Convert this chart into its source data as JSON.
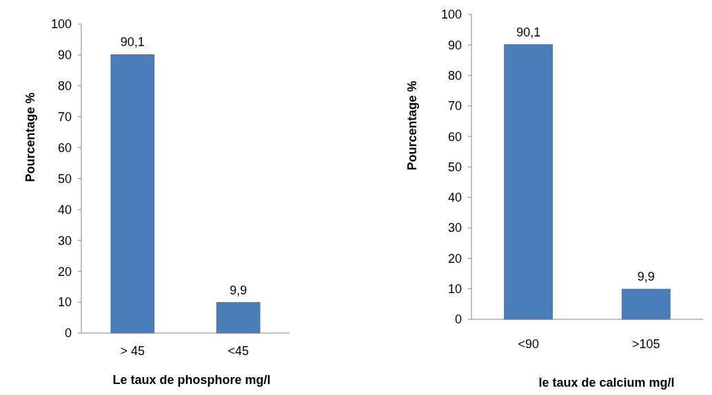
{
  "chart_data": [
    {
      "type": "bar",
      "xlabel": "Le taux de phosphore mg/l",
      "ylabel": "Pourcentage %",
      "categories": [
        "> 45",
        "<45"
      ],
      "values": [
        90.1,
        9.9
      ],
      "value_labels": [
        "90,1",
        "9,9"
      ],
      "color": "#4a7ebb",
      "ylim": [
        0,
        100
      ],
      "yticks": [
        0,
        10,
        20,
        30,
        40,
        50,
        60,
        70,
        80,
        90,
        100
      ],
      "grid": false
    },
    {
      "type": "bar",
      "xlabel": "le taux de calcium mg/l",
      "ylabel": "Pourcentage %",
      "categories": [
        "<90",
        ">105"
      ],
      "values": [
        90.1,
        9.9
      ],
      "value_labels": [
        "90,1",
        "9,9"
      ],
      "color": "#4a7ebb",
      "ylim": [
        0,
        100
      ],
      "yticks": [
        0,
        10,
        20,
        30,
        40,
        50,
        60,
        70,
        80,
        90,
        100
      ],
      "grid": false
    }
  ]
}
